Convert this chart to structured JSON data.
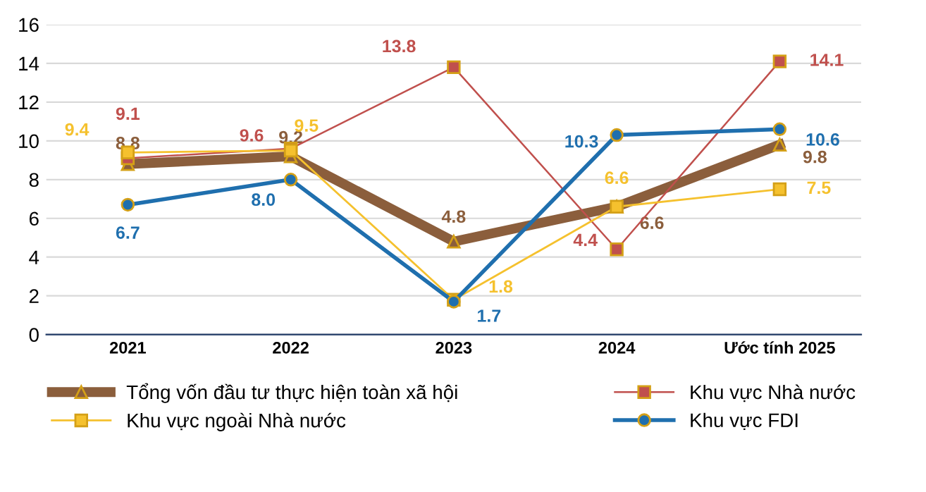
{
  "chart_data": {
    "type": "line",
    "categories": [
      "2021",
      "2022",
      "2023",
      "2024",
      "Ước tính 2025"
    ],
    "series": [
      {
        "name": "Tổng vốn đầu tư thực hiện toàn xã hội",
        "color": "#8b5e3c",
        "values": [
          8.8,
          9.2,
          4.8,
          6.6,
          9.8
        ],
        "marker": "triangle"
      },
      {
        "name": "Khu vực Nhà nước",
        "color": "#c0504d",
        "values": [
          9.1,
          9.6,
          13.8,
          4.4,
          14.1
        ],
        "marker": "square"
      },
      {
        "name": "Khu vực ngoài Nhà nước",
        "color": "#f5c12e",
        "values": [
          9.4,
          9.5,
          1.8,
          6.6,
          7.5
        ],
        "marker": "square"
      },
      {
        "name": "Khu vực FDI",
        "color": "#1f6fae",
        "values": [
          6.7,
          8.0,
          1.7,
          10.3,
          10.6
        ],
        "value_labels": [
          "6.7",
          "8.0",
          "1.7",
          "10.3",
          "10.6"
        ],
        "marker": "circle"
      }
    ],
    "ylim": [
      0,
      16
    ],
    "yticks": [
      0,
      2,
      4,
      6,
      8,
      10,
      12,
      14,
      16
    ],
    "grid": "y",
    "legend": "bottom",
    "data_labels": true
  }
}
